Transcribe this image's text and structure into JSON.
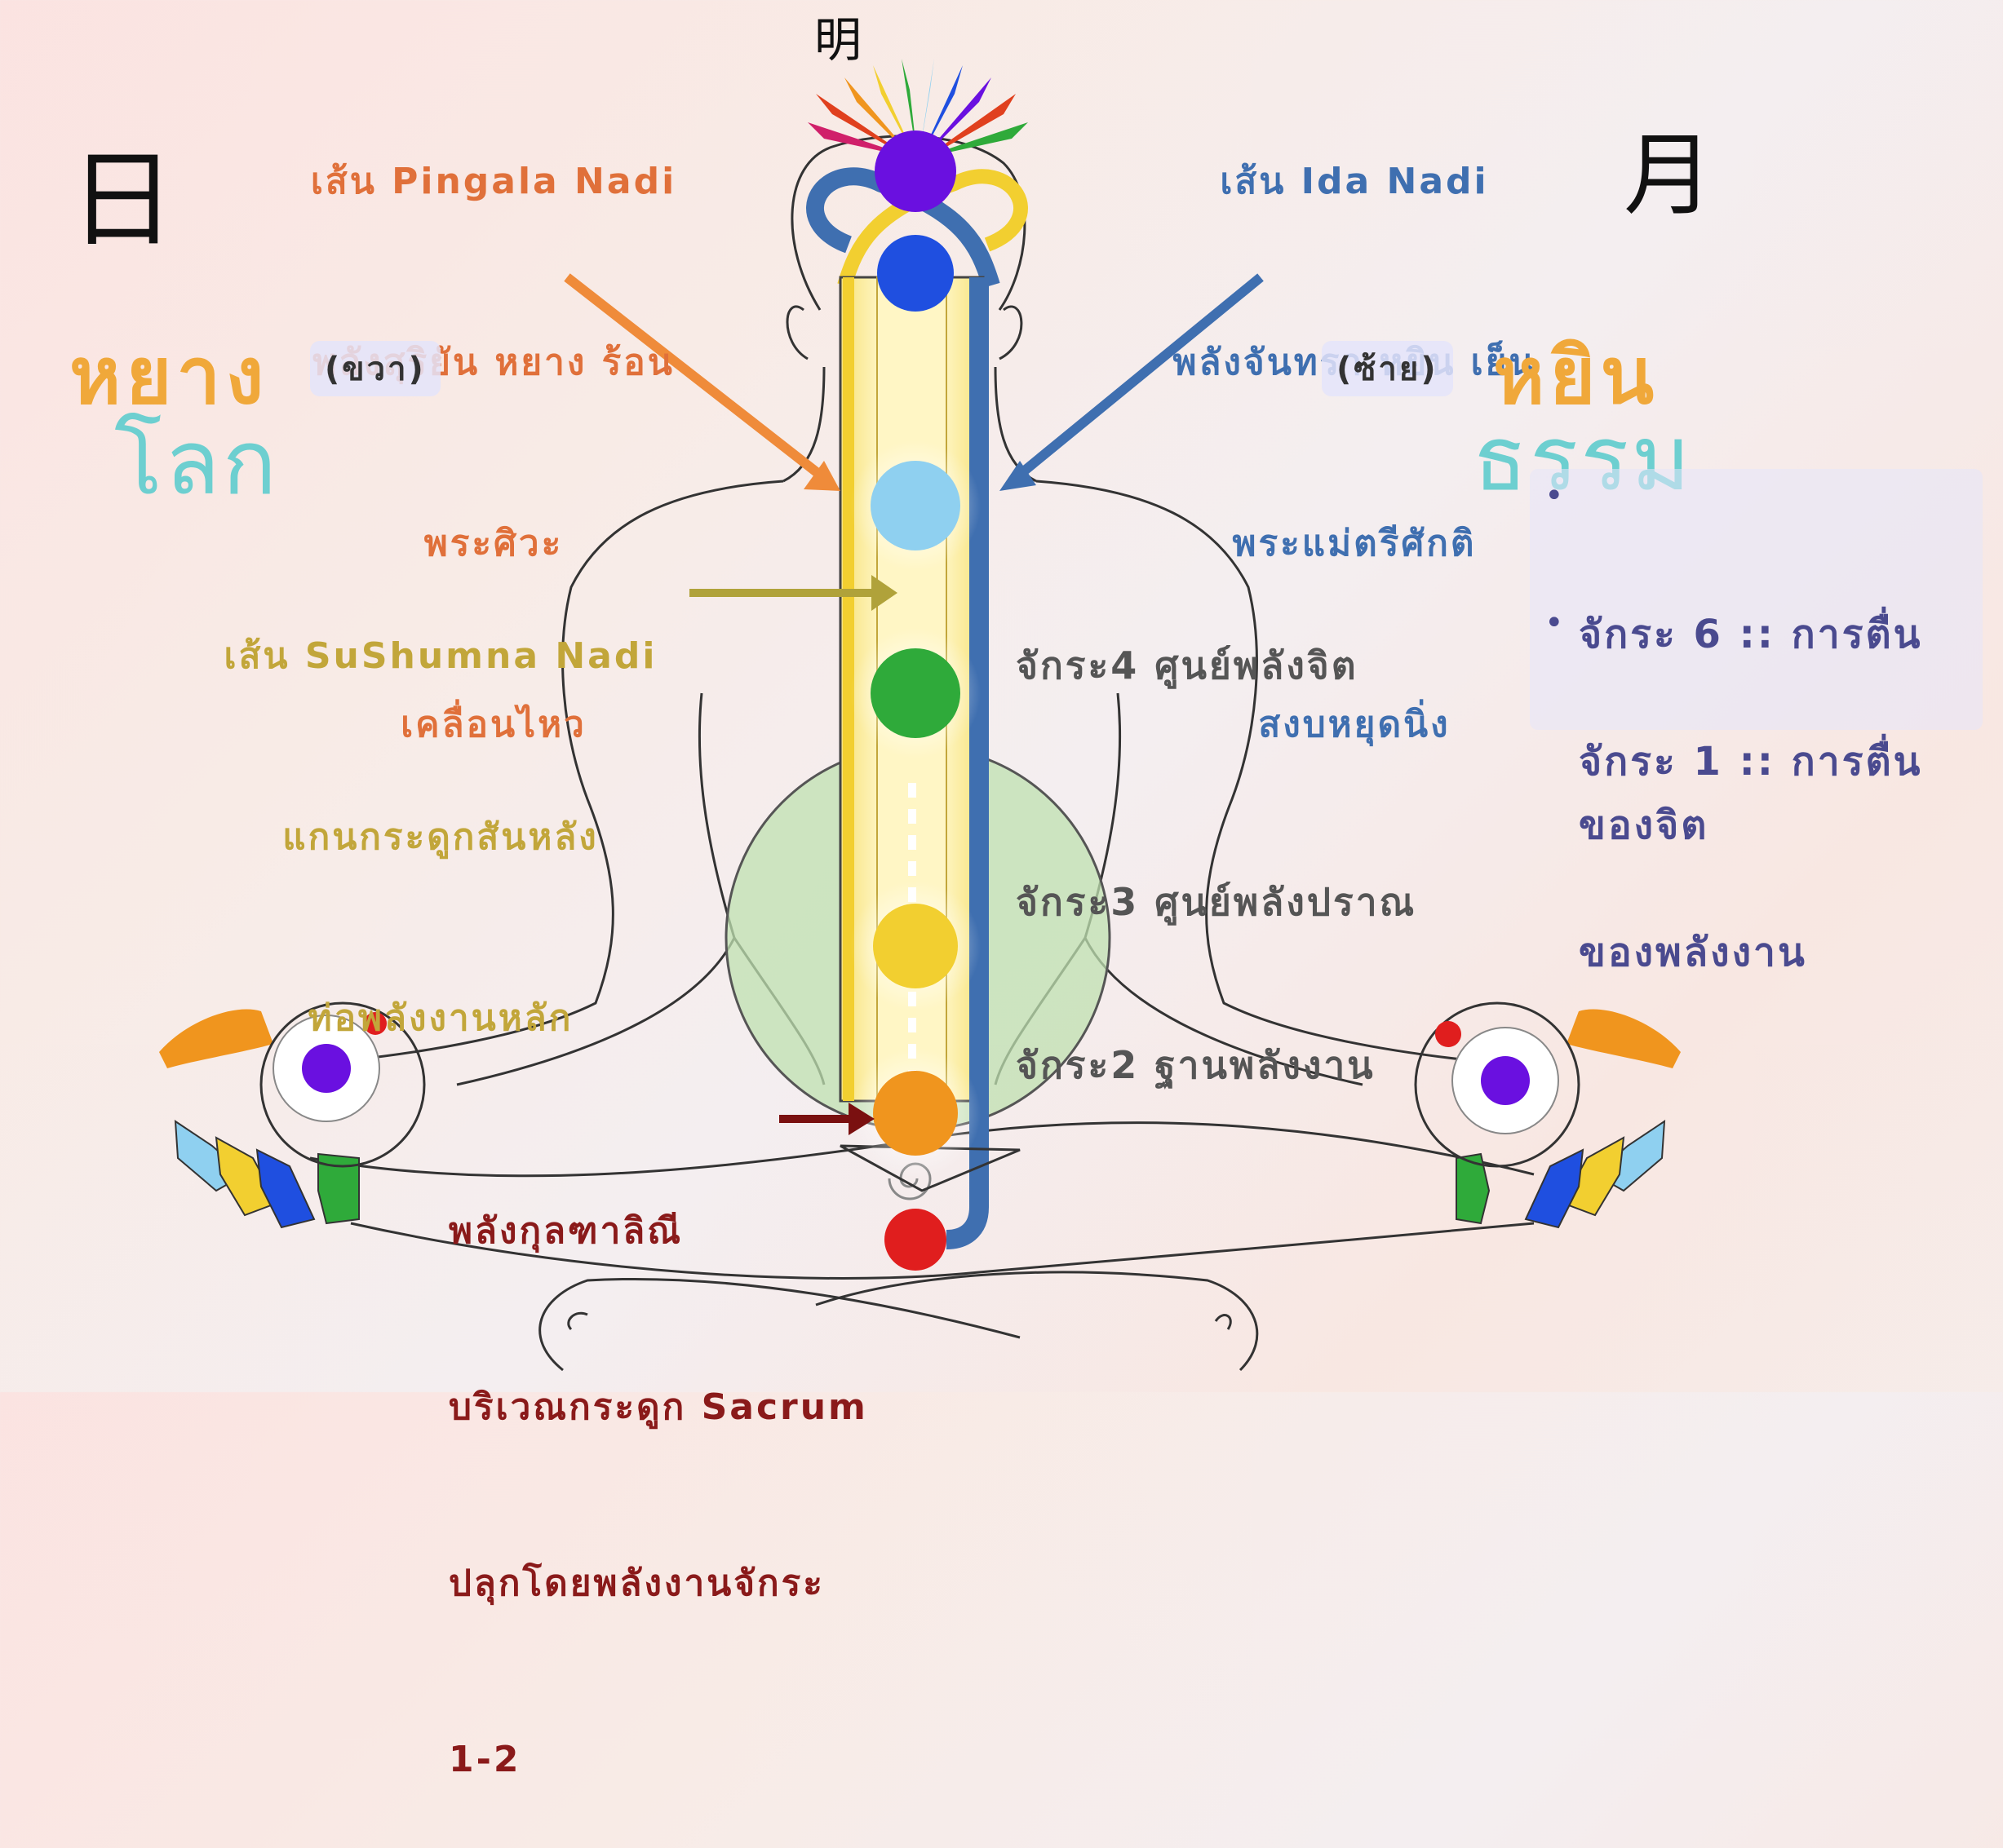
{
  "kanji": {
    "top": "明",
    "left": "日",
    "right": "月"
  },
  "pingala": {
    "title": "เส้น Pingala Nadi",
    "line2": "พลังสุริยัน หยาง ร้อน",
    "line3": "พระศิวะ",
    "line4": "เคลื่อนไหว"
  },
  "ida": {
    "title": "เส้น Ida Nadi",
    "line2": "พลังจันทรา หยิน เย็น",
    "line3": "พระแม่ตรีศักติ",
    "line4": "สงบหยุดนิ่ง"
  },
  "yang": {
    "word": "หยาง",
    "side": "(ขวา)",
    "world": "โลก"
  },
  "yin": {
    "word": "หยิน",
    "side": "(ซ้าย)",
    "dharma": "ธรรม"
  },
  "sushumna": {
    "title": "เส้น SuShumna Nadi",
    "line2": "แกนกระดูกสันหลัง",
    "line3": "ท่อพลังงานหลัก"
  },
  "chakra_labels": {
    "c4": "จักระ4 ศูนย์พลังจิต",
    "c3": "จักระ3 ศูนย์พลังปราณ",
    "c2": "จักระ2 ฐานพลังงาน"
  },
  "kundalini": {
    "line1": "พลังกุลฑาลิณี",
    "line2": "บริเวณกระดูก Sacrum",
    "line3": "ปลุกโดยพลังงานจักระ",
    "line4": "1-2"
  },
  "notes": [
    {
      "line1": "จักระ 6 :: การตื่น",
      "line2": "ของจิต"
    },
    {
      "line1": "จักระ 1 :: การตื่น",
      "line2": "ของพลังงาน"
    }
  ],
  "colors": {
    "pingala_text": "#e0703a",
    "ida_text": "#3f6fb0",
    "yang_text": "#f0a83a",
    "world_text": "#6dcfd0",
    "sushumna_text": "#c2a63a",
    "label_text": "#555555",
    "kundalini_text": "#8a1a1a",
    "arrow_pingala": "#ef8b3a",
    "arrow_ida": "#3f6fb0",
    "arrow_sushumna": "#b0a23a",
    "arrow_kundalini": "#7a1010"
  },
  "chakras": [
    {
      "name": "crown",
      "color": "#6a10e0"
    },
    {
      "name": "third-eye",
      "color": "#1f4fe0"
    },
    {
      "name": "throat",
      "color": "#8fd0f0"
    },
    {
      "name": "heart",
      "color": "#2faa3a"
    },
    {
      "name": "solar-plexus",
      "color": "#f2cf30"
    },
    {
      "name": "sacral",
      "color": "#f0951e"
    },
    {
      "name": "root",
      "color": "#e01e1e"
    }
  ]
}
